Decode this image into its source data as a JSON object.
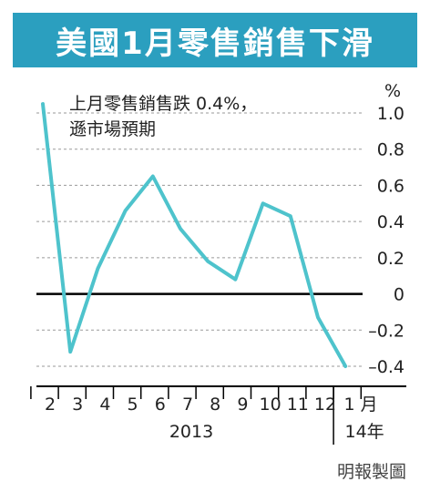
{
  "title": "美國1月零售銷售下滑",
  "chart_data": {
    "type": "line",
    "title": "美國1月零售銷售下滑",
    "unit": "%",
    "annotation_lines": [
      "上月零售銷售跌 0.4%，",
      "遜市場預期"
    ],
    "categories": [
      "2",
      "3",
      "4",
      "5",
      "6",
      "7",
      "8",
      "9",
      "10",
      "11",
      "12",
      "1 月"
    ],
    "year_labels": [
      "2013",
      "14年"
    ],
    "series": [
      {
        "values": [
          1.05,
          -0.32,
          0.14,
          0.46,
          0.65,
          0.36,
          0.18,
          0.08,
          0.5,
          0.43,
          -0.13,
          -0.4
        ]
      }
    ],
    "ylim": [
      -0.45,
      1.1
    ],
    "yticks": [
      1.0,
      0.8,
      0.6,
      0.4,
      0.2,
      0,
      -0.2,
      -0.4
    ],
    "ytick_labels": [
      "1.0",
      "0.8",
      "0.6",
      "0.4",
      "0.2",
      "0",
      "–0.2",
      "–0.4"
    ],
    "grid": true,
    "line_color": "#4ec3cc",
    "zero_line_color": "#000000"
  },
  "source": "明報製圖"
}
